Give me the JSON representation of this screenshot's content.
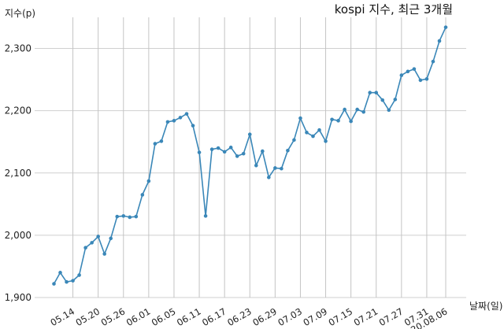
{
  "chart_data": {
    "type": "line",
    "title": "kospi 지수, 최근 3개월",
    "ylabel": "지수(p)",
    "xlabel": "날짜(일)",
    "ylim": [
      1900,
      2350
    ],
    "yticks": [
      1900,
      2000,
      2100,
      2200,
      2300
    ],
    "ytick_labels": [
      "1,900",
      "2,000",
      "2,100",
      "2,200",
      "2,300"
    ],
    "xtick_labels": [
      "05.14",
      "05.20",
      "05.26",
      "06.01",
      "06.05",
      "06.11",
      "06.17",
      "06.23",
      "06.29",
      "07.03",
      "07.09",
      "07.15",
      "07.21",
      "07.27",
      "07.31",
      "20.08.06"
    ],
    "xtick_index": [
      3,
      7,
      11,
      15,
      19,
      23,
      27,
      31,
      35,
      39,
      43,
      47,
      51,
      55,
      59,
      62
    ],
    "grid": "vertical",
    "color": "#3a87b8",
    "values": [
      1922,
      1940,
      1925,
      1927,
      1936,
      1980,
      1988,
      1998,
      1970,
      1995,
      2030,
      2031,
      2029,
      2030,
      2065,
      2087,
      2147,
      2151,
      2182,
      2184,
      2189,
      2195,
      2176,
      2133,
      2031,
      2138,
      2140,
      2134,
      2141,
      2127,
      2131,
      2162,
      2112,
      2135,
      2093,
      2108,
      2107,
      2136,
      2153,
      2188,
      2165,
      2159,
      2169,
      2151,
      2186,
      2184,
      2202,
      2183,
      2202,
      2198,
      2229,
      2229,
      2217,
      2201,
      2218,
      2257,
      2263,
      2267,
      2249,
      2251,
      2279,
      2312,
      2334
    ]
  }
}
